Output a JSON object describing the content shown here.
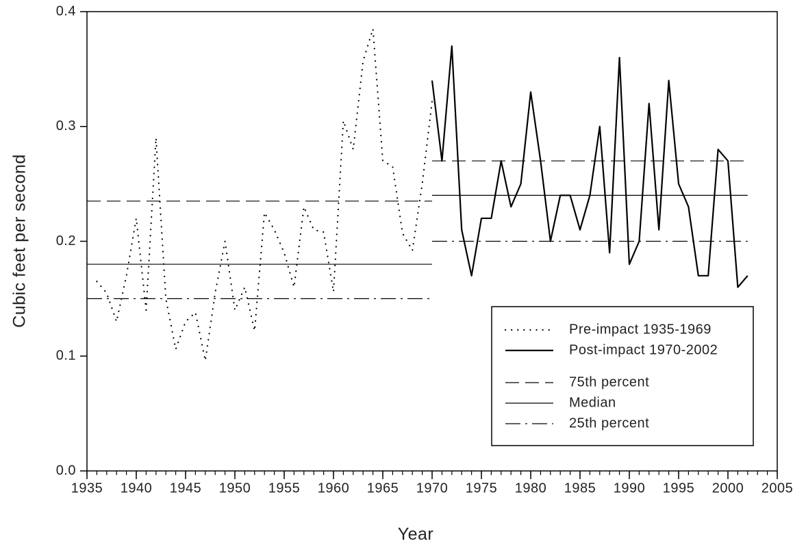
{
  "chart_data": {
    "type": "line",
    "xlabel": "Year",
    "ylabel": "Cubic feet per second",
    "xlim": [
      1935,
      2005
    ],
    "ylim": [
      0,
      0.4
    ],
    "xticks": [
      1935,
      1940,
      1945,
      1950,
      1955,
      1960,
      1965,
      1970,
      1975,
      1980,
      1985,
      1990,
      1995,
      2000,
      2005
    ],
    "xminor_step": 1,
    "yticks": [
      {
        "value": 0,
        "label": "0.0"
      },
      0.1,
      0.2,
      0.3,
      0.4
    ],
    "series": [
      {
        "name": "Pre-impact 1935-1969",
        "color": "#000000",
        "style": "dotted",
        "x": [
          1936,
          1937,
          1938,
          1939,
          1940,
          1941,
          1942,
          1943,
          1944,
          1945,
          1946,
          1947,
          1948,
          1949,
          1950,
          1951,
          1952,
          1953,
          1954,
          1955,
          1956,
          1957,
          1958,
          1959,
          1960,
          1961,
          1962,
          1963,
          1964,
          1965,
          1966,
          1967,
          1968,
          1969,
          1970
        ],
        "values": [
          0.165,
          0.155,
          0.13,
          0.17,
          0.22,
          0.14,
          0.29,
          0.15,
          0.106,
          0.13,
          0.138,
          0.096,
          0.155,
          0.2,
          0.14,
          0.16,
          0.122,
          0.225,
          0.21,
          0.19,
          0.16,
          0.23,
          0.21,
          0.208,
          0.156,
          0.305,
          0.28,
          0.357,
          0.385,
          0.27,
          0.265,
          0.207,
          0.192,
          0.25,
          0.322
        ]
      },
      {
        "name": "Post-impact 1970-2002",
        "color": "#000000",
        "style": "solid",
        "x": [
          1970,
          1971,
          1972,
          1973,
          1974,
          1975,
          1976,
          1977,
          1978,
          1979,
          1980,
          1981,
          1982,
          1983,
          1984,
          1985,
          1986,
          1987,
          1988,
          1989,
          1990,
          1991,
          1992,
          1993,
          1994,
          1995,
          1996,
          1997,
          1998,
          1999,
          2000,
          2001,
          2002
        ],
        "values": [
          0.34,
          0.27,
          0.37,
          0.21,
          0.17,
          0.22,
          0.22,
          0.27,
          0.23,
          0.25,
          0.33,
          0.27,
          0.2,
          0.24,
          0.24,
          0.21,
          0.24,
          0.3,
          0.19,
          0.36,
          0.18,
          0.2,
          0.32,
          0.21,
          0.34,
          0.25,
          0.23,
          0.17,
          0.17,
          0.28,
          0.27,
          0.16,
          0.17
        ]
      }
    ],
    "percentiles": [
      {
        "name": "75th percent",
        "dash": "20 9",
        "segments": [
          {
            "x": [
              1935,
              1970
            ],
            "value": 0.235
          },
          {
            "x": [
              1970,
              2002
            ],
            "value": 0.27
          }
        ]
      },
      {
        "name": "Median",
        "dash": "none",
        "segments": [
          {
            "x": [
              1935,
              1970
            ],
            "value": 0.18
          },
          {
            "x": [
              1970,
              2002
            ],
            "value": 0.24
          }
        ]
      },
      {
        "name": "25th percent",
        "dash": "22 7 3 7",
        "segments": [
          {
            "x": [
              1935,
              1970
            ],
            "value": 0.15
          },
          {
            "x": [
              1970,
              2002
            ],
            "value": 0.2
          }
        ]
      }
    ]
  }
}
